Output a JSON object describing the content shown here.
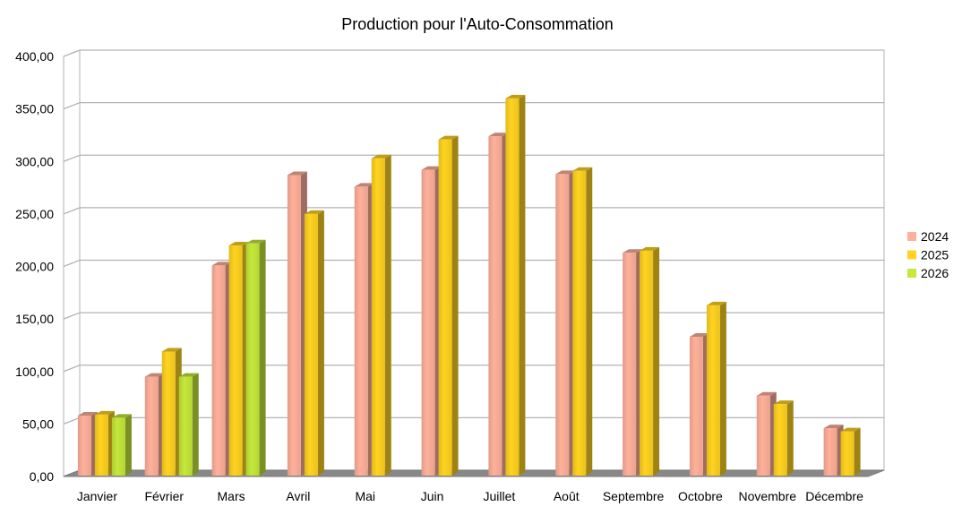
{
  "chart_data": {
    "type": "bar",
    "title": "Production pour l'Auto-Consommation",
    "categories": [
      "Janvier",
      "Février",
      "Mars",
      "Avril",
      "Mai",
      "Juin",
      "Juillet",
      "Août",
      "Septembre",
      "Octobre",
      "Novembre",
      "Décembre"
    ],
    "ylim": [
      0,
      400
    ],
    "yticks": [
      "0,00",
      "50,00",
      "100,00",
      "150,00",
      "200,00",
      "250,00",
      "300,00",
      "350,00",
      "400,00"
    ],
    "grid": true,
    "legend_position": "right",
    "series": [
      {
        "name": "2024",
        "color": "#ffb09a",
        "values": [
          58,
          95,
          201,
          287,
          276,
          292,
          324,
          288,
          213,
          133,
          77,
          46
        ]
      },
      {
        "name": "2025",
        "color": "#ffd320",
        "values": [
          59,
          119,
          220,
          250,
          303,
          321,
          360,
          291,
          215,
          163,
          69,
          43
        ]
      },
      {
        "name": "2026",
        "color": "#c5e83a",
        "values": [
          56,
          95,
          222,
          null,
          null,
          null,
          null,
          null,
          null,
          null,
          null,
          null
        ]
      }
    ]
  }
}
